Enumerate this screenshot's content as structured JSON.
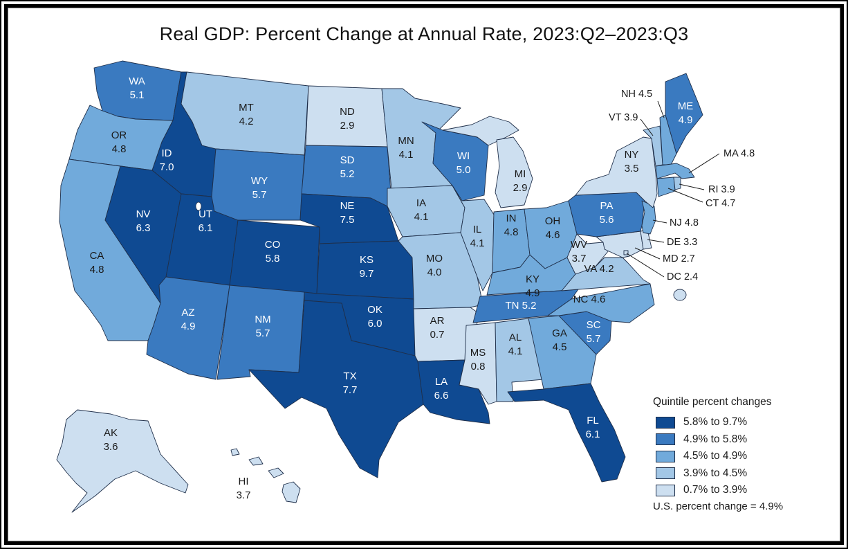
{
  "title": "Real GDP: Percent Change at Annual Rate, 2023:Q2–2023:Q3",
  "colors": {
    "q1": "#cddff0",
    "q2": "#a3c7e6",
    "q3": "#71aadb",
    "q4": "#3a7ac0",
    "q5": "#0f4a92",
    "border": "#1f2f4a"
  },
  "legend": {
    "title": "Quintile percent changes",
    "items": [
      {
        "label": "5.8% to 9.7%",
        "class": "q5"
      },
      {
        "label": "4.9% to 5.8%",
        "class": "q4"
      },
      {
        "label": "4.5% to 4.9%",
        "class": "q3"
      },
      {
        "label": "3.9% to 4.5%",
        "class": "q2"
      },
      {
        "label": "0.7% to 3.9%",
        "class": "q1"
      }
    ],
    "us_change": "U.S. percent change = 4.9%"
  },
  "states": [
    {
      "abbr": "WA",
      "value": "5.1",
      "class": "q4"
    },
    {
      "abbr": "OR",
      "value": "4.8",
      "class": "q3"
    },
    {
      "abbr": "CA",
      "value": "4.8",
      "class": "q3"
    },
    {
      "abbr": "ID",
      "value": "7.0",
      "class": "q5"
    },
    {
      "abbr": "NV",
      "value": "6.3",
      "class": "q5"
    },
    {
      "abbr": "UT",
      "value": "6.1",
      "class": "q5"
    },
    {
      "abbr": "AZ",
      "value": "4.9",
      "class": "q4"
    },
    {
      "abbr": "MT",
      "value": "4.2",
      "class": "q2"
    },
    {
      "abbr": "WY",
      "value": "5.7",
      "class": "q4"
    },
    {
      "abbr": "CO",
      "value": "5.8",
      "class": "q5"
    },
    {
      "abbr": "NM",
      "value": "5.7",
      "class": "q4"
    },
    {
      "abbr": "ND",
      "value": "2.9",
      "class": "q1"
    },
    {
      "abbr": "SD",
      "value": "5.2",
      "class": "q4"
    },
    {
      "abbr": "NE",
      "value": "7.5",
      "class": "q5"
    },
    {
      "abbr": "KS",
      "value": "9.7",
      "class": "q5"
    },
    {
      "abbr": "OK",
      "value": "6.0",
      "class": "q5"
    },
    {
      "abbr": "TX",
      "value": "7.7",
      "class": "q5"
    },
    {
      "abbr": "MN",
      "value": "4.1",
      "class": "q2"
    },
    {
      "abbr": "IA",
      "value": "4.1",
      "class": "q2"
    },
    {
      "abbr": "MO",
      "value": "4.0",
      "class": "q2"
    },
    {
      "abbr": "AR",
      "value": "0.7",
      "class": "q1"
    },
    {
      "abbr": "LA",
      "value": "6.6",
      "class": "q5"
    },
    {
      "abbr": "WI",
      "value": "5.0",
      "class": "q4"
    },
    {
      "abbr": "IL",
      "value": "4.1",
      "class": "q2"
    },
    {
      "abbr": "MI",
      "value": "2.9",
      "class": "q1"
    },
    {
      "abbr": "IN",
      "value": "4.8",
      "class": "q3"
    },
    {
      "abbr": "OH",
      "value": "4.6",
      "class": "q3"
    },
    {
      "abbr": "KY",
      "value": "4.9",
      "class": "q3"
    },
    {
      "abbr": "TN",
      "value": "5.2",
      "class": "q4"
    },
    {
      "abbr": "MS",
      "value": "0.8",
      "class": "q1"
    },
    {
      "abbr": "AL",
      "value": "4.1",
      "class": "q2"
    },
    {
      "abbr": "GA",
      "value": "4.5",
      "class": "q3"
    },
    {
      "abbr": "FL",
      "value": "6.1",
      "class": "q5"
    },
    {
      "abbr": "SC",
      "value": "5.7",
      "class": "q4"
    },
    {
      "abbr": "NC",
      "value": "4.6",
      "class": "q3"
    },
    {
      "abbr": "VA",
      "value": "4.2",
      "class": "q2"
    },
    {
      "abbr": "WV",
      "value": "3.7",
      "class": "q1"
    },
    {
      "abbr": "PA",
      "value": "5.6",
      "class": "q4"
    },
    {
      "abbr": "NY",
      "value": "3.5",
      "class": "q1"
    },
    {
      "abbr": "ME",
      "value": "4.9",
      "class": "q4"
    },
    {
      "abbr": "NH",
      "value": "4.5",
      "class": "q3"
    },
    {
      "abbr": "VT",
      "value": "3.9",
      "class": "q2"
    },
    {
      "abbr": "MA",
      "value": "4.8",
      "class": "q3"
    },
    {
      "abbr": "RI",
      "value": "3.9",
      "class": "q2"
    },
    {
      "abbr": "CT",
      "value": "4.7",
      "class": "q3"
    },
    {
      "abbr": "NJ",
      "value": "4.8",
      "class": "q3"
    },
    {
      "abbr": "DE",
      "value": "3.3",
      "class": "q1"
    },
    {
      "abbr": "MD",
      "value": "2.7",
      "class": "q1"
    },
    {
      "abbr": "DC",
      "value": "2.4",
      "class": "q1"
    },
    {
      "abbr": "AK",
      "value": "3.6",
      "class": "q1"
    },
    {
      "abbr": "HI",
      "value": "3.7",
      "class": "q1"
    }
  ]
}
